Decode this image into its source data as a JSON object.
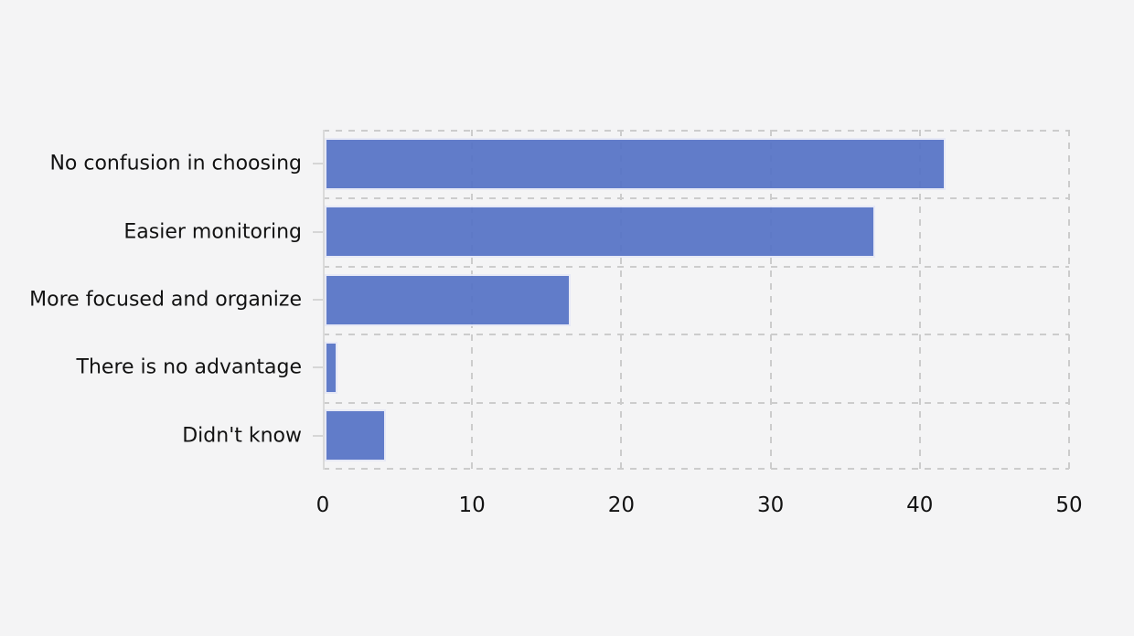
{
  "chart_data": {
    "type": "bar",
    "orientation": "horizontal",
    "title": "",
    "xlabel": "",
    "ylabel": "",
    "categories": [
      "No confusion in choosing",
      "Easier monitoring",
      "More focused and organize",
      "There is no advantage",
      "Didn't know"
    ],
    "values": [
      41.7,
      37,
      16.6,
      1,
      4.2
    ],
    "xlim": [
      0,
      50
    ],
    "xticks": [
      0,
      10,
      20,
      30,
      40,
      50
    ],
    "grid": "dashed",
    "legend": "none",
    "colors": {
      "background": "#f4f4f5",
      "bar_fill": "#5572c6",
      "bar_edge": "#e6e9f7",
      "grid_line": "#cccccc",
      "axis_spine": "#dadada",
      "tick_mark": "#d6d6d6",
      "text": "#121212"
    }
  }
}
